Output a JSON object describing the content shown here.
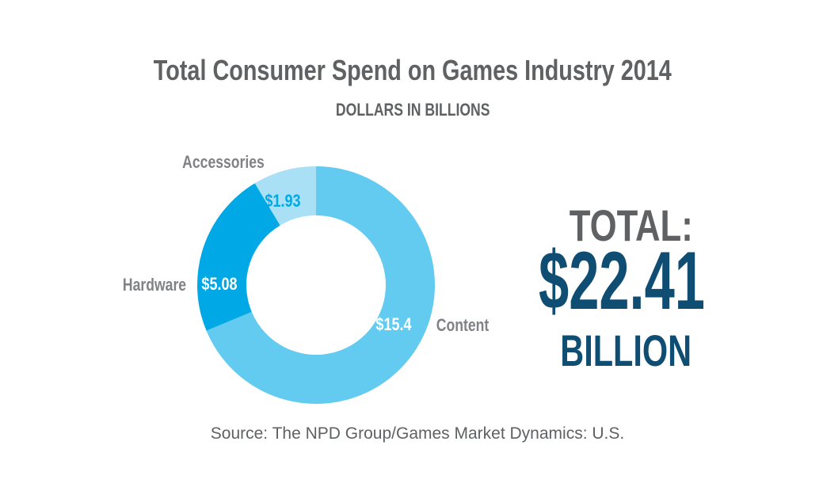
{
  "chart_data": {
    "type": "pie",
    "title": "Total Consumer Spend on Games Industry 2014",
    "subtitle": "DOLLARS IN BILLIONS",
    "slices": [
      {
        "name": "Content",
        "value": 15.4,
        "label": "$15.4",
        "color": "#63cbf0"
      },
      {
        "name": "Hardware",
        "value": 5.08,
        "label": "$5.08",
        "color": "#00a9e6"
      },
      {
        "name": "Accessories",
        "value": 1.93,
        "label": "$1.93",
        "color": "#a9e0f6"
      }
    ],
    "total": {
      "label": "TOTAL:",
      "value": "$22.41",
      "unit": "BILLION"
    },
    "source": "Source: The NPD Group/Games Market Dynamics: U.S."
  },
  "colors": {
    "title": "#5f6163",
    "total_value": "#0f4d73",
    "label_dark_slice": "#ffffff",
    "label_light_slice": "#00a9e6"
  }
}
